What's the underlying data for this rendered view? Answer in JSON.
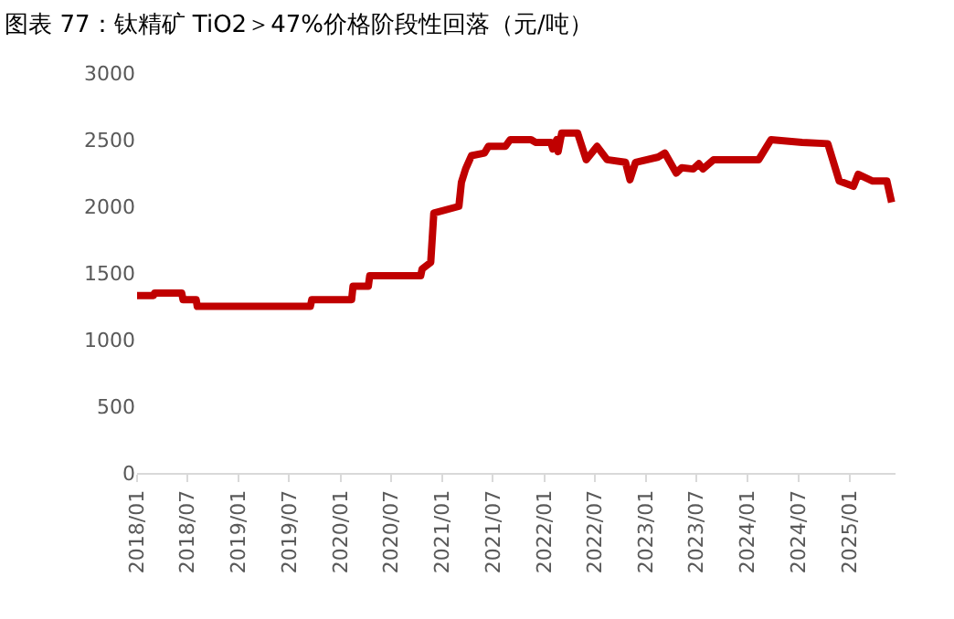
{
  "chart_data": {
    "type": "line",
    "title": "图表 77：钛精矿 TiO2＞47%价格阶段性回落（元/吨）",
    "x": [
      "2018-01-01",
      "2018-03-01",
      "2018-03-05",
      "2018-06-10",
      "2018-06-15",
      "2018-08-01",
      "2018-08-05",
      "2019-09-15",
      "2019-09-20",
      "2020-02-10",
      "2020-02-15",
      "2020-04-10",
      "2020-04-15",
      "2020-10-15",
      "2020-10-20",
      "2020-11-20",
      "2020-12-01",
      "2021-03-01",
      "2021-03-10",
      "2021-03-25",
      "2021-04-15",
      "2021-06-01",
      "2021-06-15",
      "2021-08-15",
      "2021-09-01",
      "2021-11-15",
      "2021-12-01",
      "2022-01-25",
      "2022-02-01",
      "2022-02-15",
      "2022-02-20",
      "2022-03-05",
      "2022-05-01",
      "2022-06-01",
      "2022-07-10",
      "2022-08-15",
      "2022-10-20",
      "2022-11-05",
      "2022-11-25",
      "2023-02-15",
      "2023-03-10",
      "2023-04-20",
      "2023-05-10",
      "2023-06-20",
      "2023-07-10",
      "2023-07-25",
      "2023-09-01",
      "2024-02-10",
      "2024-03-25",
      "2024-07-15",
      "2024-10-15",
      "2024-11-25",
      "2025-01-15",
      "2025-02-01",
      "2025-03-25",
      "2025-05-15",
      "2025-06-01"
    ],
    "series": [
      {
        "color": "#c00000",
        "values": [
          1330,
          1330,
          1350,
          1350,
          1300,
          1300,
          1250,
          1250,
          1300,
          1300,
          1400,
          1400,
          1480,
          1480,
          1530,
          1580,
          1950,
          2000,
          2180,
          2280,
          2380,
          2400,
          2450,
          2450,
          2500,
          2500,
          2480,
          2480,
          2430,
          2500,
          2410,
          2550,
          2550,
          2350,
          2450,
          2350,
          2330,
          2200,
          2330,
          2370,
          2400,
          2250,
          2290,
          2280,
          2320,
          2280,
          2350,
          2350,
          2500,
          2480,
          2470,
          2190,
          2150,
          2240,
          2190,
          2190,
          2030
        ]
      }
    ],
    "xlim": [
      "2018-01-01",
      "2025-06-15"
    ],
    "xticks": [
      {
        "value": "2018-01-01",
        "label": "2018/01"
      },
      {
        "value": "2018-07-01",
        "label": "2018/07"
      },
      {
        "value": "2019-01-01",
        "label": "2019/01"
      },
      {
        "value": "2019-07-01",
        "label": "2019/07"
      },
      {
        "value": "2020-01-01",
        "label": "2020/01"
      },
      {
        "value": "2020-07-01",
        "label": "2020/07"
      },
      {
        "value": "2021-01-01",
        "label": "2021/01"
      },
      {
        "value": "2021-07-01",
        "label": "2021/07"
      },
      {
        "value": "2022-01-01",
        "label": "2022/01"
      },
      {
        "value": "2022-07-01",
        "label": "2022/07"
      },
      {
        "value": "2023-01-01",
        "label": "2023/01"
      },
      {
        "value": "2023-07-01",
        "label": "2023/07"
      },
      {
        "value": "2024-01-01",
        "label": "2024/01"
      },
      {
        "value": "2024-07-01",
        "label": "2024/07"
      },
      {
        "value": "2025-01-01",
        "label": "2025/01"
      }
    ],
    "ylim": [
      0,
      3000
    ],
    "yticks": [
      0,
      500,
      1000,
      1500,
      2000,
      2500,
      3000
    ],
    "marker": "none",
    "line_style": "solid"
  }
}
